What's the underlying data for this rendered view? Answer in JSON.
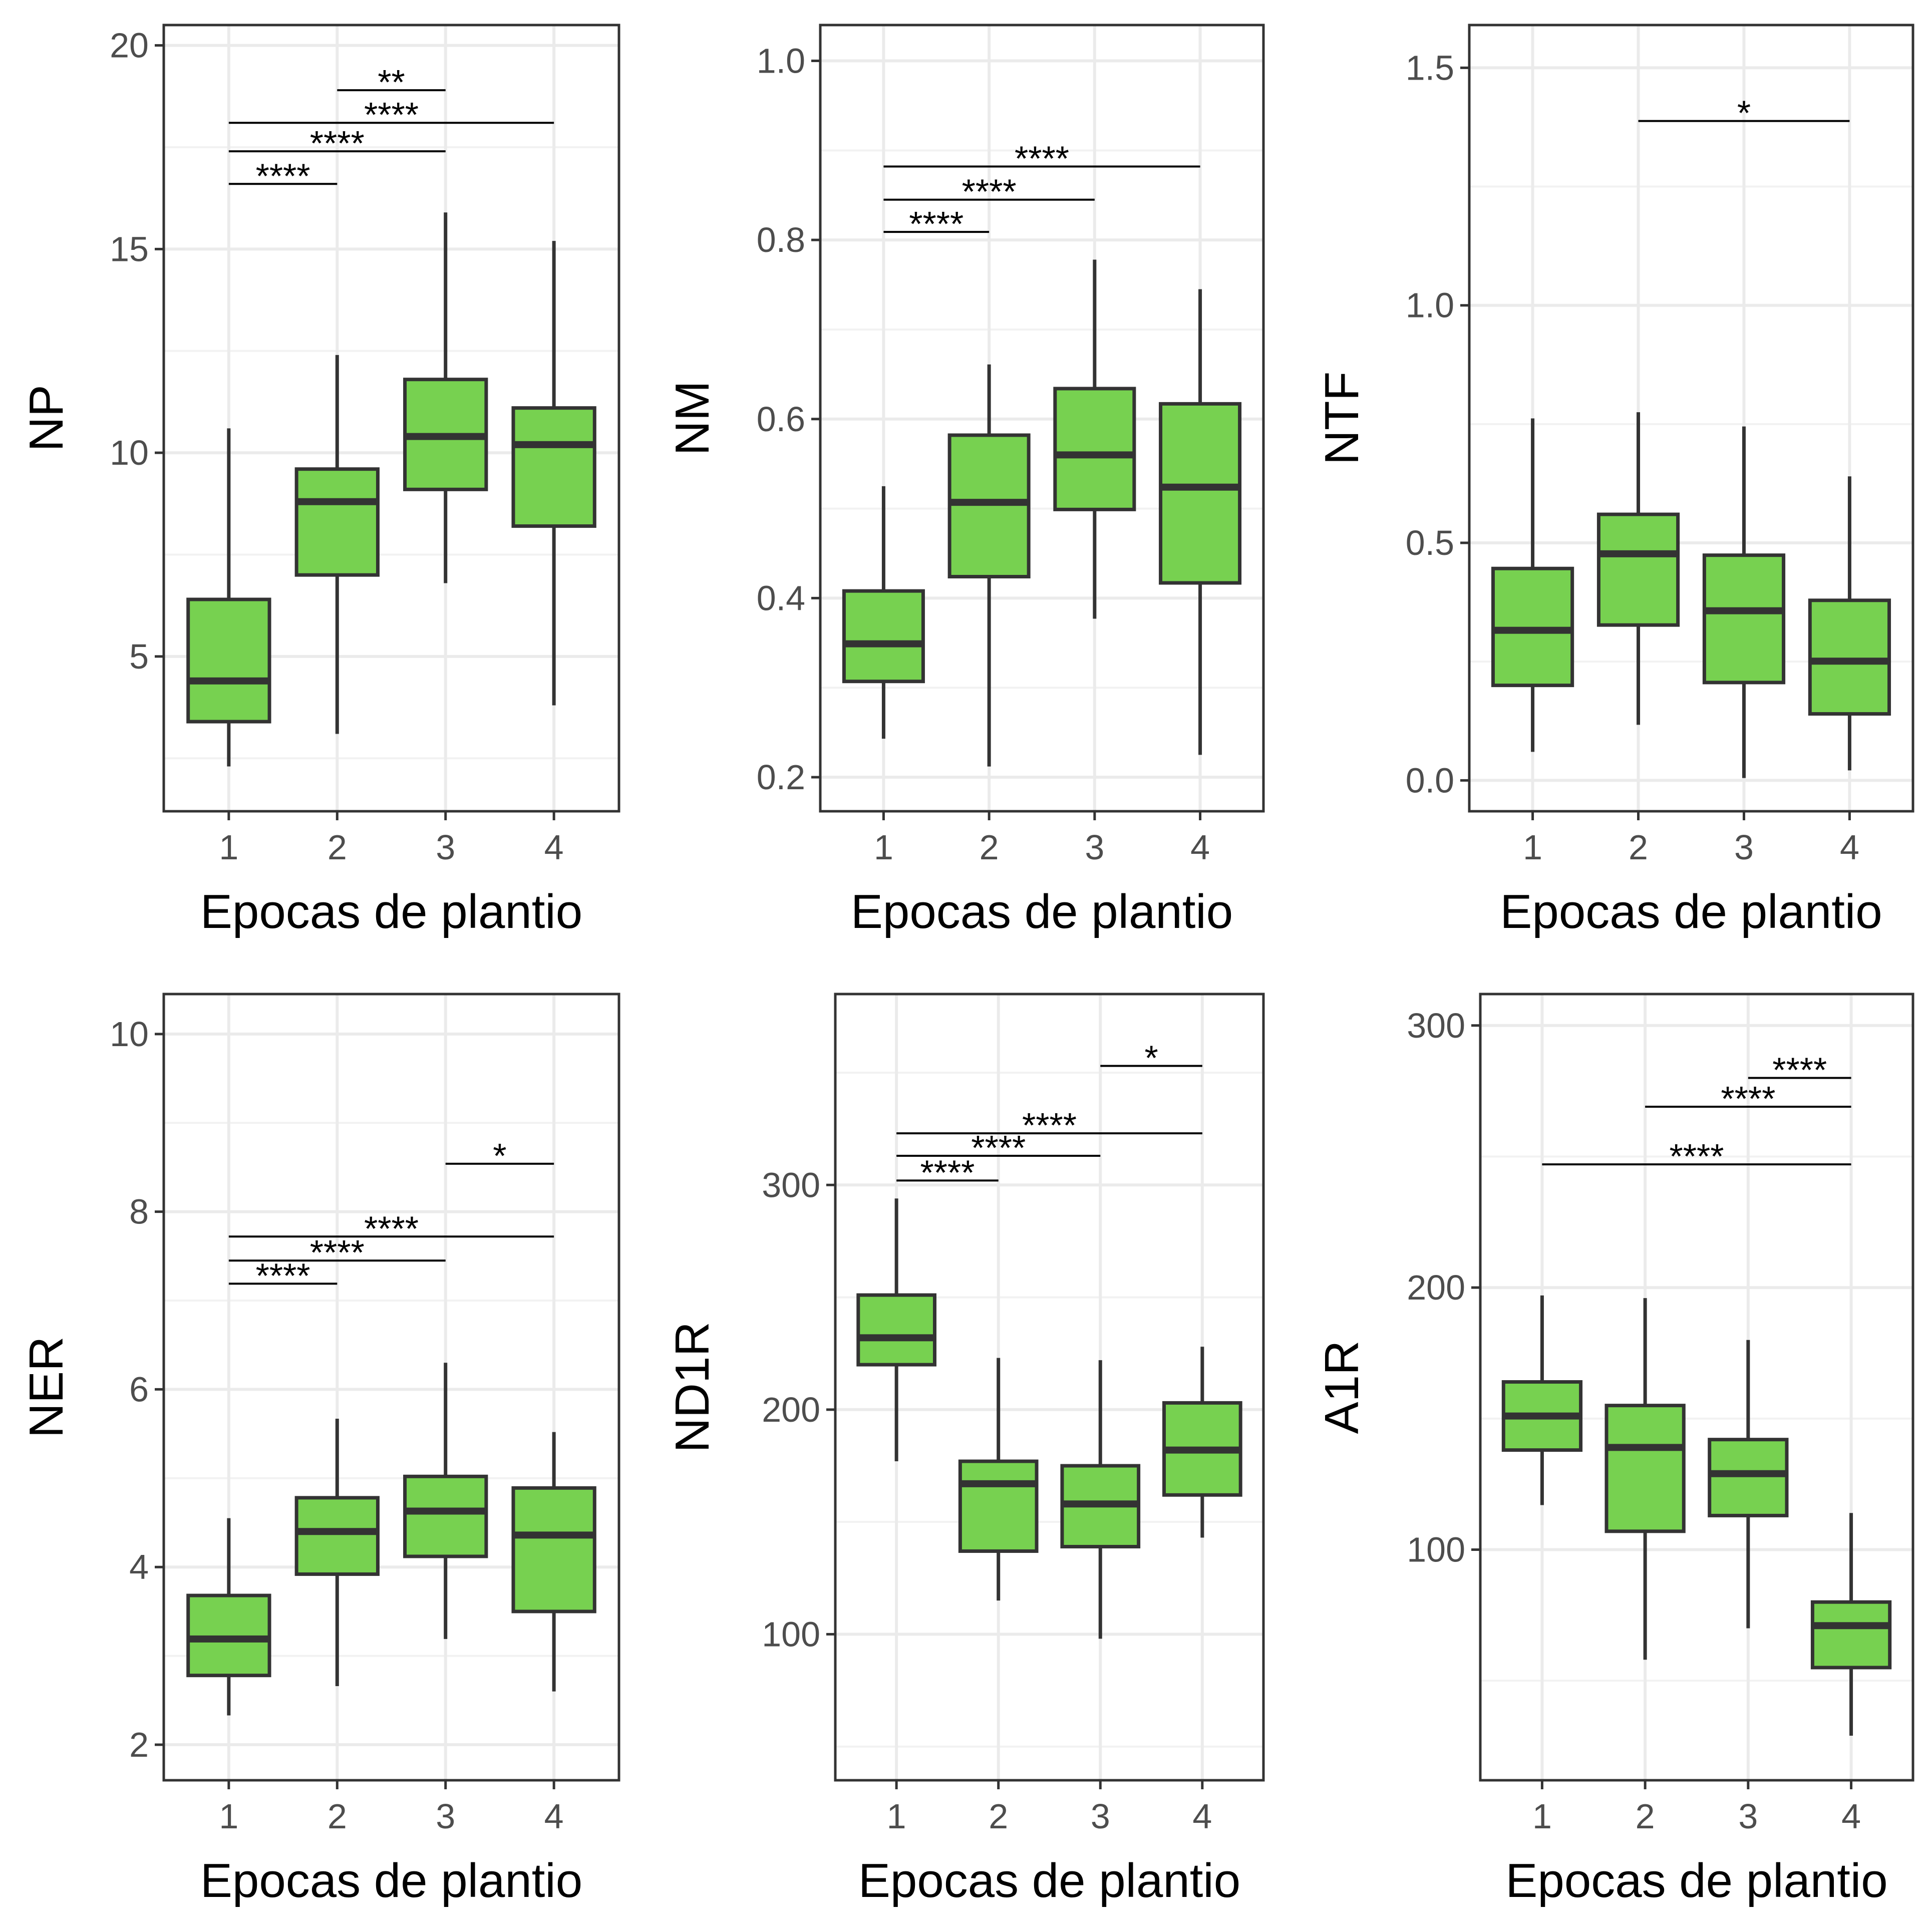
{
  "style": {
    "box_fill": "#77D150",
    "box_stroke": "#333333",
    "grid_major": "#EBEBEB",
    "grid_minor": "#F2F2F2",
    "panel_border": "#333333",
    "tick_text": "#4D4D4D"
  },
  "chart_data": [
    {
      "type": "box",
      "categories": [
        "1",
        "2",
        "3",
        "4"
      ],
      "xlabel": "Epocas de plantio",
      "ylabel": "NP",
      "ylim": [
        1.2,
        20.5
      ],
      "yticks": [
        5,
        10,
        15,
        20
      ],
      "ytick_labels": [
        "5",
        "10",
        "15",
        "20"
      ],
      "grid": true,
      "boxes": [
        {
          "whisker_low": 2.3,
          "q1": 3.4,
          "median": 4.4,
          "q3": 6.4,
          "whisker_high": 10.6
        },
        {
          "whisker_low": 3.1,
          "q1": 7.0,
          "median": 8.8,
          "q3": 9.6,
          "whisker_high": 12.4
        },
        {
          "whisker_low": 6.8,
          "q1": 9.1,
          "median": 10.4,
          "q3": 11.8,
          "whisker_high": 15.9
        },
        {
          "whisker_low": 3.8,
          "q1": 8.2,
          "median": 10.2,
          "q3": 11.1,
          "whisker_high": 15.2
        }
      ],
      "comparisons": [
        {
          "from": "1",
          "to": "2",
          "y": 16.6,
          "label": "****"
        },
        {
          "from": "1",
          "to": "3",
          "y": 17.4,
          "label": "****"
        },
        {
          "from": "1",
          "to": "4",
          "y": 18.1,
          "label": "****"
        },
        {
          "from": "2",
          "to": "3",
          "y": 18.9,
          "label": "**"
        }
      ]
    },
    {
      "type": "box",
      "categories": [
        "1",
        "2",
        "3",
        "4"
      ],
      "xlabel": "Epocas de plantio",
      "ylabel": "NM",
      "ylim": [
        0.162,
        1.04
      ],
      "yticks": [
        0.2,
        0.4,
        0.6,
        0.8,
        1.0
      ],
      "ytick_labels": [
        "0.2",
        "0.4",
        "0.6",
        "0.8",
        "1.0"
      ],
      "grid": true,
      "boxes": [
        {
          "whisker_low": 0.243,
          "q1": 0.307,
          "median": 0.349,
          "q3": 0.408,
          "whisker_high": 0.525
        },
        {
          "whisker_low": 0.212,
          "q1": 0.424,
          "median": 0.507,
          "q3": 0.582,
          "whisker_high": 0.661
        },
        {
          "whisker_low": 0.377,
          "q1": 0.499,
          "median": 0.56,
          "q3": 0.634,
          "whisker_high": 0.778
        },
        {
          "whisker_low": 0.225,
          "q1": 0.417,
          "median": 0.524,
          "q3": 0.617,
          "whisker_high": 0.745
        }
      ],
      "comparisons": [
        {
          "from": "1",
          "to": "2",
          "y": 0.809,
          "label": "****"
        },
        {
          "from": "1",
          "to": "3",
          "y": 0.845,
          "label": "****"
        },
        {
          "from": "1",
          "to": "4",
          "y": 0.882,
          "label": "****"
        }
      ]
    },
    {
      "type": "box",
      "categories": [
        "1",
        "2",
        "3",
        "4"
      ],
      "xlabel": "Epocas de plantio",
      "ylabel": "NTF",
      "ylim": [
        -0.065,
        1.59
      ],
      "yticks": [
        0.0,
        0.5,
        1.0,
        1.5
      ],
      "ytick_labels": [
        "0.0",
        "0.5",
        "1.0",
        "1.5"
      ],
      "grid": true,
      "boxes": [
        {
          "whisker_low": 0.06,
          "q1": 0.2,
          "median": 0.316,
          "q3": 0.446,
          "whisker_high": 0.762
        },
        {
          "whisker_low": 0.117,
          "q1": 0.327,
          "median": 0.477,
          "q3": 0.56,
          "whisker_high": 0.775
        },
        {
          "whisker_low": 0.005,
          "q1": 0.206,
          "median": 0.357,
          "q3": 0.474,
          "whisker_high": 0.745
        },
        {
          "whisker_low": 0.021,
          "q1": 0.14,
          "median": 0.251,
          "q3": 0.379,
          "whisker_high": 0.64
        }
      ],
      "comparisons": [
        {
          "from": "2",
          "to": "4",
          "y": 1.388,
          "label": "*"
        }
      ]
    },
    {
      "type": "box",
      "categories": [
        "1",
        "2",
        "3",
        "4"
      ],
      "xlabel": "Epocas de plantio",
      "ylabel": "NER",
      "ylim": [
        1.6,
        10.45
      ],
      "yticks": [
        2,
        4,
        6,
        8,
        10
      ],
      "ytick_labels": [
        "2",
        "4",
        "6",
        "8",
        "10"
      ],
      "grid": true,
      "boxes": [
        {
          "whisker_low": 2.33,
          "q1": 2.78,
          "median": 3.19,
          "q3": 3.68,
          "whisker_high": 4.55
        },
        {
          "whisker_low": 2.66,
          "q1": 3.92,
          "median": 4.4,
          "q3": 4.78,
          "whisker_high": 5.67
        },
        {
          "whisker_low": 3.19,
          "q1": 4.12,
          "median": 4.63,
          "q3": 5.02,
          "whisker_high": 6.3
        },
        {
          "whisker_low": 2.6,
          "q1": 3.5,
          "median": 4.36,
          "q3": 4.89,
          "whisker_high": 5.52
        }
      ],
      "comparisons": [
        {
          "from": "1",
          "to": "2",
          "y": 7.19,
          "label": "****"
        },
        {
          "from": "1",
          "to": "3",
          "y": 7.45,
          "label": "****"
        },
        {
          "from": "1",
          "to": "4",
          "y": 7.72,
          "label": "****"
        },
        {
          "from": "3",
          "to": "4",
          "y": 8.54,
          "label": "*"
        }
      ]
    },
    {
      "type": "box",
      "categories": [
        "1",
        "2",
        "3",
        "4"
      ],
      "xlabel": "Epocas de plantio",
      "ylabel": "ND1R",
      "ylim": [
        35,
        385
      ],
      "yticks": [
        100,
        200,
        300
      ],
      "ytick_labels": [
        "100",
        "200",
        "300"
      ],
      "grid": true,
      "boxes": [
        {
          "whisker_low": 177,
          "q1": 220,
          "median": 232,
          "q3": 251,
          "whisker_high": 294
        },
        {
          "whisker_low": 115,
          "q1": 137,
          "median": 167,
          "q3": 177,
          "whisker_high": 223
        },
        {
          "whisker_low": 98,
          "q1": 139,
          "median": 158,
          "q3": 175,
          "whisker_high": 222
        },
        {
          "whisker_low": 143,
          "q1": 162,
          "median": 182,
          "q3": 203,
          "whisker_high": 228
        }
      ],
      "comparisons": [
        {
          "from": "1",
          "to": "2",
          "y": 302,
          "label": "****"
        },
        {
          "from": "1",
          "to": "3",
          "y": 313,
          "label": "****"
        },
        {
          "from": "1",
          "to": "4",
          "y": 323,
          "label": "****"
        },
        {
          "from": "3",
          "to": "4",
          "y": 353,
          "label": "*"
        }
      ]
    },
    {
      "type": "box",
      "categories": [
        "1",
        "2",
        "3",
        "4"
      ],
      "xlabel": "Epocas de plantio",
      "ylabel": "A1R",
      "ylim": [
        12,
        312
      ],
      "yticks": [
        100,
        200,
        300
      ],
      "ytick_labels": [
        "100",
        "200",
        "300"
      ],
      "grid": true,
      "boxes": [
        {
          "whisker_low": 117,
          "q1": 138,
          "median": 151,
          "q3": 164,
          "whisker_high": 197
        },
        {
          "whisker_low": 58,
          "q1": 107,
          "median": 139,
          "q3": 155,
          "whisker_high": 196
        },
        {
          "whisker_low": 70,
          "q1": 113,
          "median": 129,
          "q3": 142,
          "whisker_high": 180
        },
        {
          "whisker_low": 29,
          "q1": 55,
          "median": 71,
          "q3": 80,
          "whisker_high": 114
        }
      ],
      "comparisons": [
        {
          "from": "1",
          "to": "4",
          "y": 247,
          "label": "****"
        },
        {
          "from": "2",
          "to": "4",
          "y": 269,
          "label": "****"
        },
        {
          "from": "3",
          "to": "4",
          "y": 280,
          "label": "****"
        }
      ]
    }
  ]
}
